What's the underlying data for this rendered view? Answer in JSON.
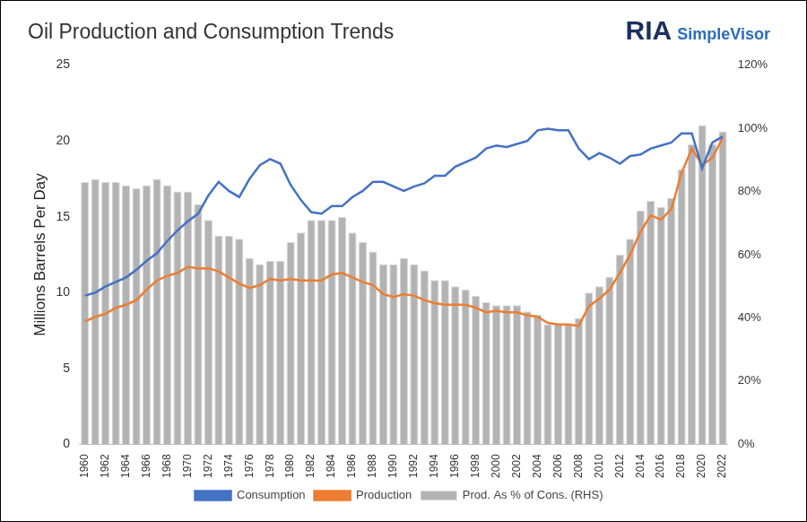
{
  "chart_data": {
    "type": "bar",
    "title": "Oil Production and Consumption Trends",
    "source": [
      "RIA",
      "SimpleVisor"
    ],
    "y_label": "Millions Barrels Per Day",
    "categories": [
      "1960",
      null,
      "1962",
      null,
      "1964",
      null,
      "1966",
      null,
      "1968",
      null,
      "1970",
      null,
      "1972",
      null,
      "1974",
      null,
      "1976",
      null,
      "1978",
      null,
      "1980",
      null,
      "1982",
      null,
      "1984",
      null,
      "1986",
      null,
      "1988",
      null,
      "1990",
      null,
      "1992",
      null,
      "1994",
      null,
      "1996",
      null,
      "1998",
      null,
      "2000",
      null,
      "2002",
      null,
      "2004",
      null,
      "2006",
      null,
      "2008",
      null,
      "2010",
      null,
      "2012",
      null,
      "2014",
      null,
      "2016",
      null,
      "2018",
      null,
      "2020",
      null,
      "2022"
    ],
    "series": [
      {
        "name": "Prod. As % of Cons. (RHS)",
        "type": "bar",
        "axis": "y2",
        "color": "#b3b3b3",
        "values": [
          83,
          84,
          83,
          83,
          82,
          81,
          82,
          84,
          82,
          80,
          80,
          76,
          71,
          66,
          66,
          65,
          59,
          57,
          58,
          58,
          64,
          67,
          71,
          71,
          71,
          72,
          67,
          64,
          61,
          57,
          57,
          59,
          57,
          55,
          52,
          52,
          50,
          49,
          47,
          45,
          44,
          44,
          44,
          42,
          41,
          38,
          38,
          38,
          40,
          48,
          50,
          53,
          60,
          65,
          74,
          77,
          75,
          78,
          87,
          95,
          101,
          95,
          99
        ]
      },
      {
        "name": "Consumption",
        "type": "line",
        "color": "#4472c4",
        "values": [
          9.8,
          10.0,
          10.4,
          10.7,
          11.0,
          11.5,
          12.1,
          12.6,
          13.4,
          14.1,
          14.7,
          15.2,
          16.4,
          17.3,
          16.7,
          16.3,
          17.5,
          18.4,
          18.8,
          18.5,
          17.1,
          16.1,
          15.3,
          15.2,
          15.7,
          15.7,
          16.3,
          16.7,
          17.3,
          17.3,
          17.0,
          16.7,
          17.0,
          17.2,
          17.7,
          17.7,
          18.3,
          18.6,
          18.9,
          19.5,
          19.7,
          19.6,
          19.8,
          20.0,
          20.7,
          20.8,
          20.7,
          20.7,
          19.5,
          18.8,
          19.2,
          18.9,
          18.5,
          19.0,
          19.1,
          19.5,
          19.7,
          19.9,
          20.5,
          20.5,
          18.2,
          19.9,
          20.3
        ]
      },
      {
        "name": "Production",
        "type": "line",
        "color": "#ed7d31",
        "values": [
          8.1,
          8.4,
          8.6,
          9.0,
          9.2,
          9.5,
          10.2,
          10.8,
          11.1,
          11.3,
          11.7,
          11.6,
          11.6,
          11.4,
          11.0,
          10.6,
          10.3,
          10.5,
          10.9,
          10.8,
          10.9,
          10.8,
          10.8,
          10.8,
          11.2,
          11.3,
          11.0,
          10.7,
          10.5,
          9.9,
          9.7,
          9.9,
          9.8,
          9.5,
          9.3,
          9.2,
          9.2,
          9.2,
          9.0,
          8.7,
          8.8,
          8.7,
          8.7,
          8.5,
          8.4,
          8.0,
          7.9,
          7.9,
          7.8,
          9.1,
          9.6,
          10.2,
          11.3,
          12.5,
          14.0,
          15.1,
          14.8,
          15.5,
          17.9,
          19.5,
          18.4,
          18.9,
          20.2
        ]
      }
    ],
    "ylim": [
      0,
      25
    ],
    "yticks": [
      0,
      5,
      10,
      15,
      20,
      25
    ],
    "y2lim": [
      0,
      120
    ],
    "y2ticks": [
      {
        "value": 0,
        "label": "0%"
      },
      {
        "value": 20,
        "label": "20%"
      },
      {
        "value": 40,
        "label": "40%"
      },
      {
        "value": 60,
        "label": "60%"
      },
      {
        "value": 80,
        "label": "80%"
      },
      {
        "value": 100,
        "label": "100%"
      },
      {
        "value": 120,
        "label": "120%"
      }
    ],
    "grid": false,
    "legend": "bottom"
  }
}
